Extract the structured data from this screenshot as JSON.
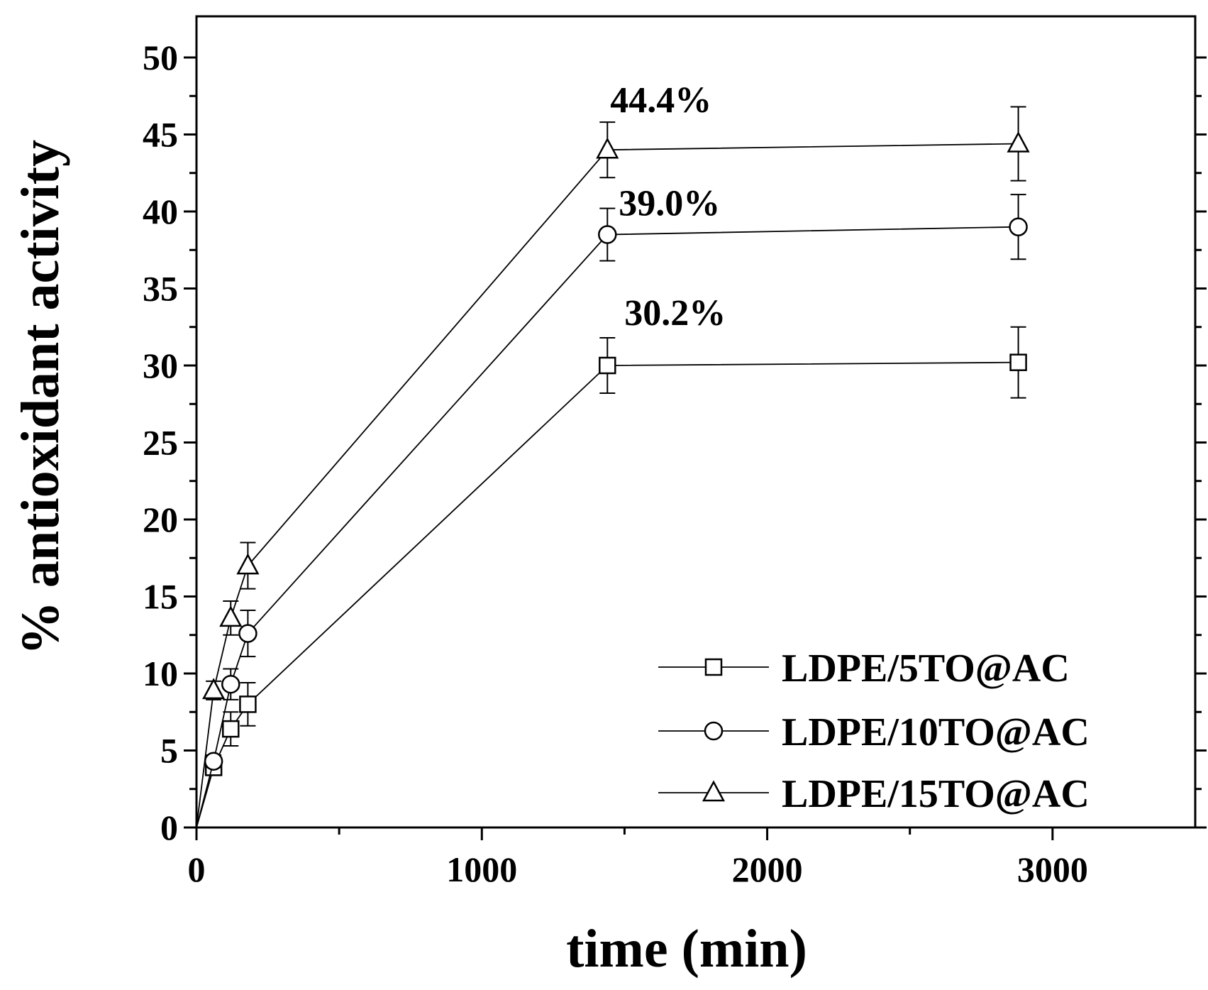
{
  "chart_data": {
    "type": "line",
    "xlabel": "time (min)",
    "ylabel": "% antioxidant activity",
    "xlim": [
      0,
      3500
    ],
    "ylim": [
      0,
      52
    ],
    "xticks": [
      0,
      1000,
      2000,
      3000
    ],
    "yticks": [
      0,
      5,
      10,
      15,
      20,
      25,
      30,
      35,
      40,
      45,
      50
    ],
    "xtick_labels": [
      "0",
      "1000",
      "2000",
      "3000"
    ],
    "ytick_labels": [
      "0",
      "5",
      "10",
      "15",
      "20",
      "25",
      "30",
      "35",
      "40",
      "45",
      "50"
    ],
    "grid": false,
    "legend_position": "bottom-right",
    "series": [
      {
        "name": "LDPE/5TO@AC",
        "marker": "square",
        "x": [
          0,
          60,
          120,
          180,
          1440,
          2880
        ],
        "y": [
          0,
          3.9,
          6.4,
          8.0,
          30.0,
          30.2
        ],
        "err": [
          0,
          0.5,
          1.1,
          1.4,
          1.8,
          2.3
        ]
      },
      {
        "name": "LDPE/10TO@AC",
        "marker": "circle",
        "x": [
          0,
          60,
          120,
          180,
          1440,
          2880
        ],
        "y": [
          0,
          4.3,
          9.3,
          12.6,
          38.5,
          39.0
        ],
        "err": [
          0,
          0.4,
          1.0,
          1.5,
          1.7,
          2.1
        ]
      },
      {
        "name": "LDPE/15TO@AC",
        "marker": "triangle",
        "x": [
          0,
          60,
          120,
          180,
          1440,
          2880
        ],
        "y": [
          0,
          8.9,
          13.6,
          17.0,
          44.0,
          44.4
        ],
        "err": [
          0,
          0.6,
          1.1,
          1.5,
          1.8,
          2.4
        ]
      }
    ],
    "annotations": [
      {
        "text": "44.4%",
        "x": 1440,
        "y": 44.0
      },
      {
        "text": "39.0%",
        "x": 1440,
        "y": 38.5
      },
      {
        "text": "30.2%",
        "x": 1440,
        "y": 30.0
      }
    ]
  }
}
